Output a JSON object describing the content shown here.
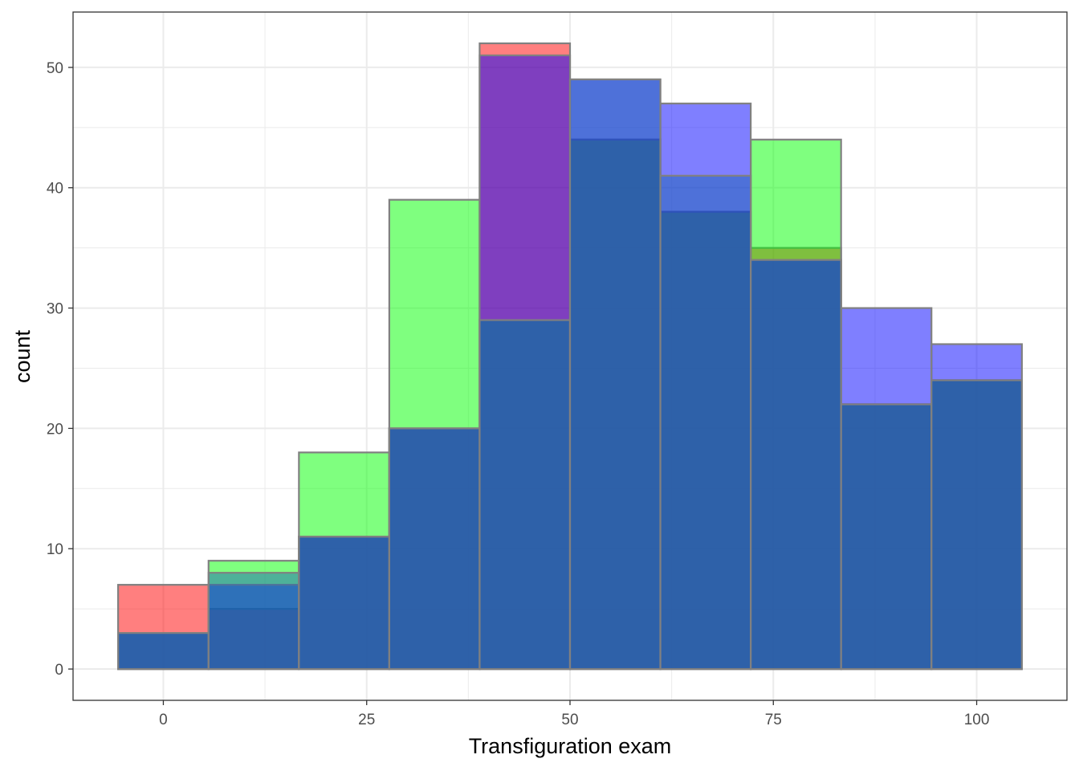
{
  "chart_data": {
    "type": "bar",
    "subtype": "overlapping-histogram",
    "title": "",
    "xlabel": "Transfiguration exam",
    "ylabel": "count",
    "xlim": [
      -11.1,
      111.1
    ],
    "ylim": [
      -2.6,
      54.6
    ],
    "x_ticks": [
      0,
      25,
      50,
      75,
      100
    ],
    "y_ticks": [
      0,
      10,
      20,
      30,
      40,
      50
    ],
    "grid": true,
    "legend": "none",
    "bin_edges": [
      -5.56,
      5.56,
      16.67,
      27.78,
      38.89,
      50,
      61.11,
      72.22,
      83.33,
      94.44,
      105.56
    ],
    "series": [
      {
        "color": "#ff0000",
        "values": [
          7,
          5,
          11,
          20,
          52,
          44,
          38,
          35,
          22,
          24
        ]
      },
      {
        "color": "#00ff00",
        "values": [
          3,
          9,
          18,
          39,
          29,
          44,
          38,
          44,
          22,
          24
        ]
      },
      {
        "color": "#0000ff",
        "values": [
          3,
          7,
          11,
          20,
          51,
          49,
          47,
          34,
          30,
          27
        ]
      },
      {
        "color": "#1e64b4",
        "values": [
          3,
          8,
          11,
          20,
          29,
          49,
          41,
          34,
          22,
          24
        ]
      }
    ]
  }
}
